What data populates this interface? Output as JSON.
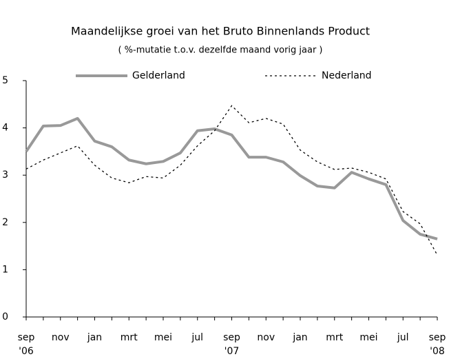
{
  "chart_data": {
    "type": "line",
    "title": "Maandelijkse groei van het Bruto Binnenlands Product",
    "subtitle": "( %-mutatie t.o.v. dezelfde maand vorig jaar )",
    "categories": [
      "sep",
      null,
      "nov",
      null,
      "jan",
      null,
      "mrt",
      null,
      "mei",
      null,
      "jul",
      null,
      "sep",
      null,
      "nov",
      null,
      "jan",
      null,
      "mrt",
      null,
      "mei",
      null,
      "jul",
      null,
      "sep"
    ],
    "category_years": [
      "'06",
      null,
      null,
      null,
      null,
      null,
      null,
      null,
      null,
      null,
      null,
      null,
      "'07",
      null,
      null,
      null,
      null,
      null,
      null,
      null,
      null,
      null,
      null,
      null,
      "'08"
    ],
    "series": [
      {
        "name": "Gelderland",
        "color": "#999999",
        "style": "solid",
        "values": [
          3.5,
          4.04,
          4.05,
          4.2,
          3.72,
          3.6,
          3.32,
          3.24,
          3.29,
          3.47,
          3.94,
          3.98,
          3.85,
          3.38,
          3.38,
          3.28,
          2.99,
          2.77,
          2.73,
          3.06,
          2.92,
          2.8,
          2.04,
          1.75,
          1.65
        ]
      },
      {
        "name": "Nederland",
        "color": "#000000",
        "style": "dotted",
        "values": [
          3.13,
          3.32,
          3.47,
          3.62,
          3.21,
          2.94,
          2.84,
          2.97,
          2.94,
          3.21,
          3.62,
          3.94,
          4.47,
          4.11,
          4.2,
          4.08,
          3.53,
          3.28,
          3.12,
          3.15,
          3.06,
          2.92,
          2.23,
          1.97,
          1.31
        ]
      }
    ],
    "ylim": [
      0,
      5
    ],
    "yticks": [
      0,
      1,
      2,
      3,
      4,
      5
    ],
    "grid": false,
    "legend": "top"
  }
}
